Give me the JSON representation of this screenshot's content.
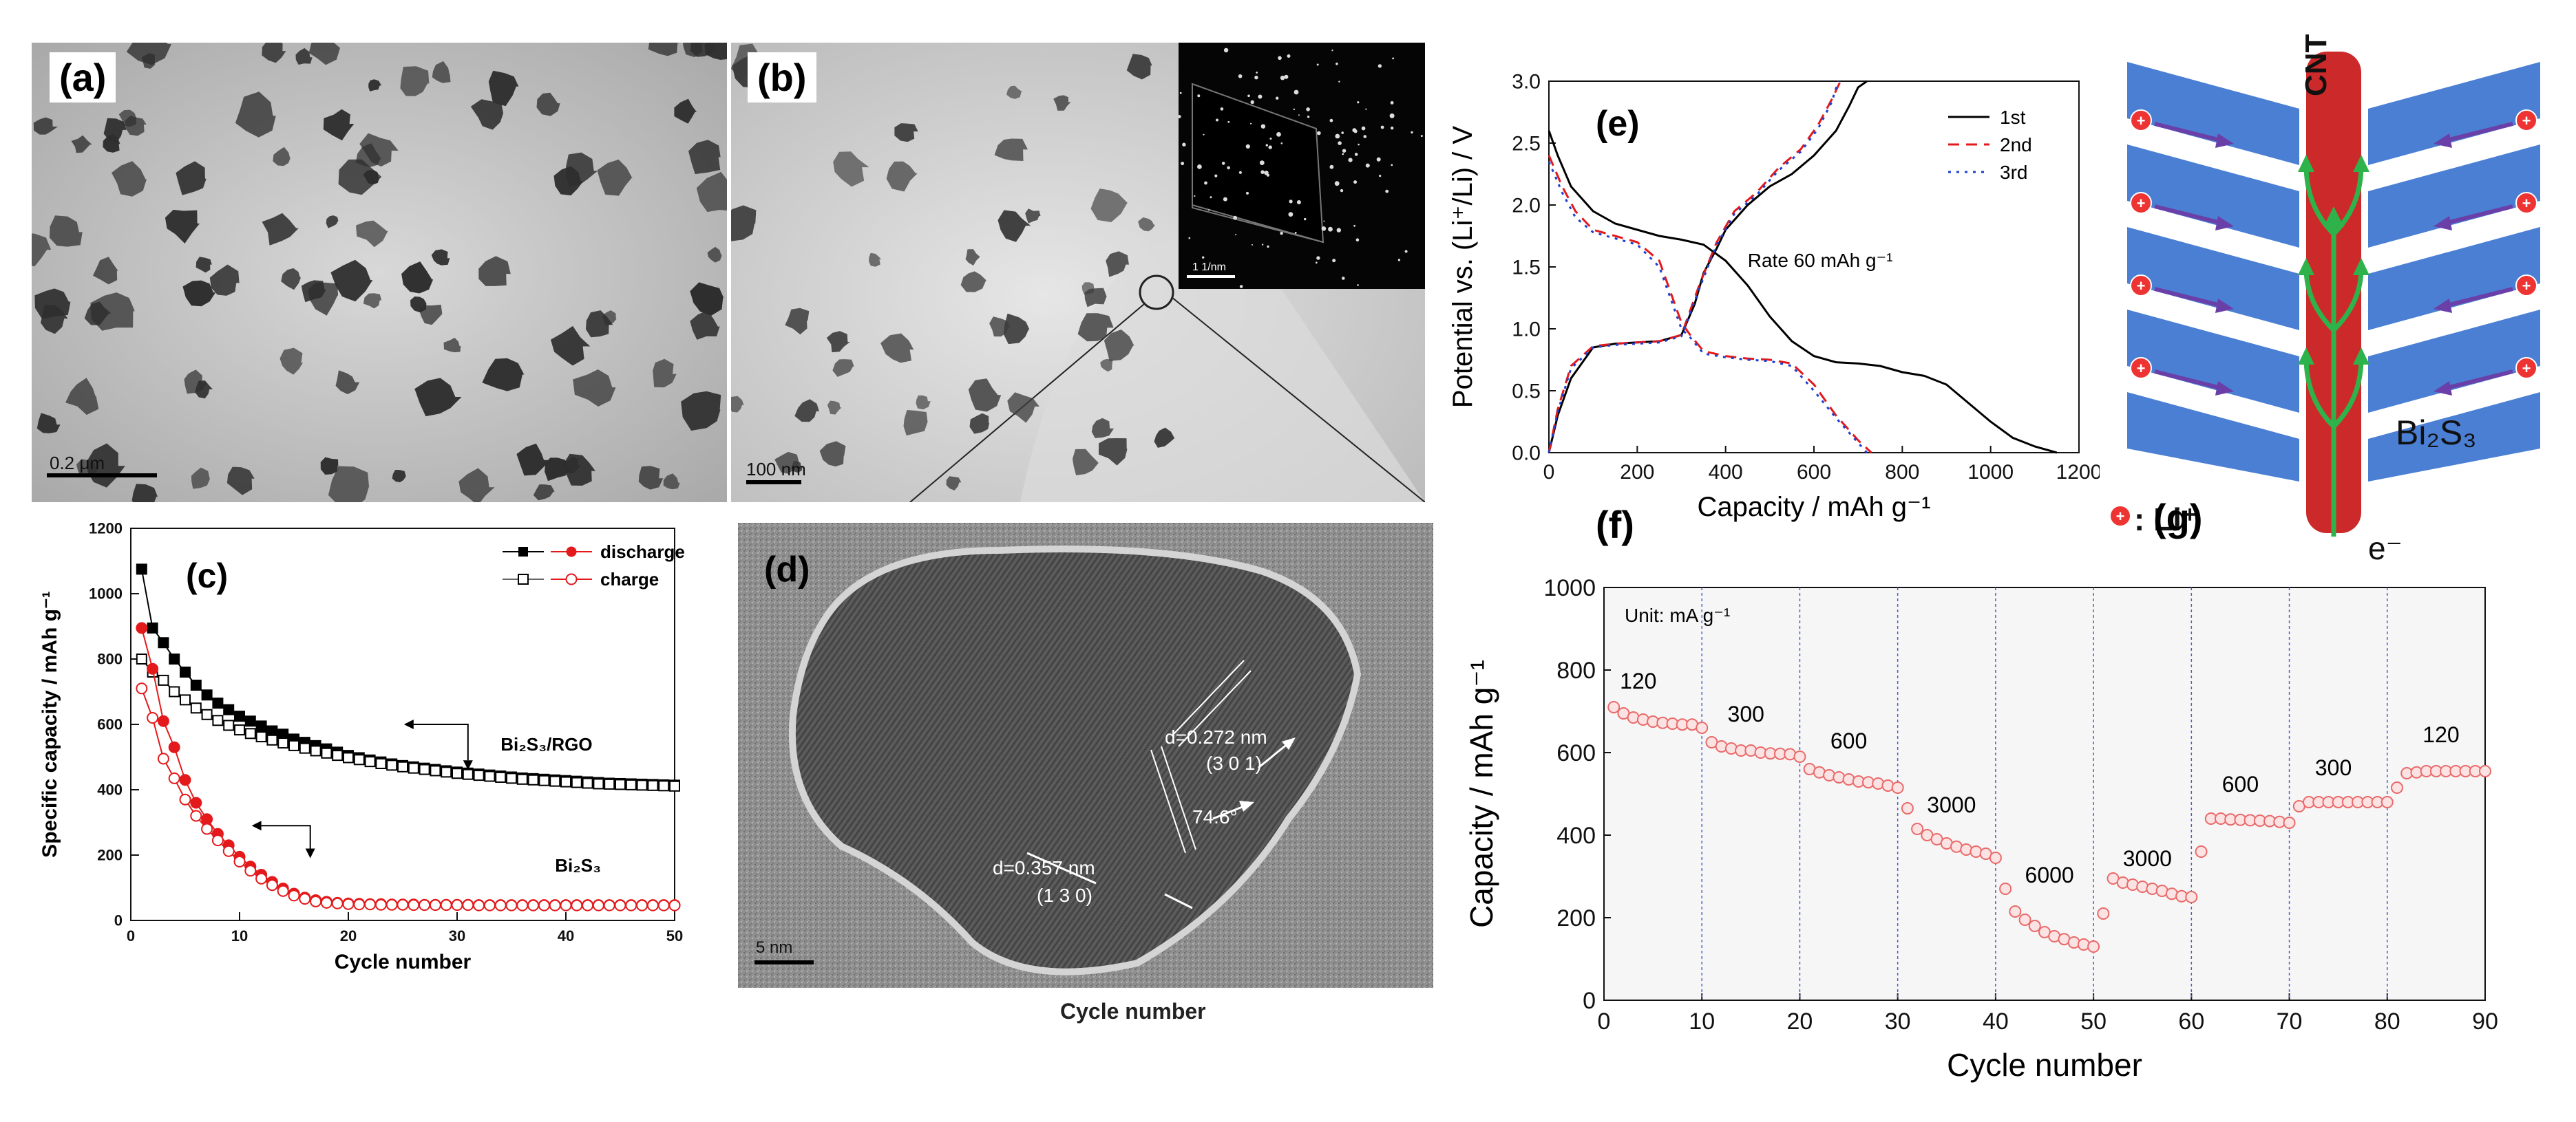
{
  "panels": {
    "a": {
      "letter": "(a)",
      "scale_bar": "0.2 μm"
    },
    "b": {
      "letter": "(b)",
      "scale_bar": "100 nm",
      "inset_scale_bar": "1 1/nm"
    },
    "c": {
      "letter": "(c)",
      "legend_discharge": "discharge",
      "legend_charge": "charge",
      "label_rgo": "Bi₂S₃/RGO",
      "label_bi2s3": "Bi₂S₃"
    },
    "d": {
      "letter": "(d)",
      "lattice_1_d": "d=0.272 nm",
      "lattice_1_hkl": "(3 0 1)",
      "lattice_2_d": "d=0.357 nm",
      "lattice_2_hkl": "(1 3 0)",
      "angle": "74.6°",
      "scale_bar": "5 nm",
      "caption": "Cycle number"
    },
    "e": {
      "letter": "(e)",
      "annotation": "Rate 60 mAh g⁻¹"
    },
    "f": {
      "letter": "(f)",
      "unit_note": "Unit: mA g⁻¹"
    },
    "g": {
      "letter": "(g)",
      "cnt_label": "CNT",
      "bi2s3_label": "Bi₂S₃",
      "li_legend": ": Li⁺",
      "electron_label": "e⁻"
    }
  },
  "colors": {
    "black_series": "#000000",
    "red_series": "#e3191b",
    "blue_series": "#1e3fd1",
    "f_series": "#e96a6a",
    "cnt_red": "#cc2a2a",
    "g_blue": "#4a7fd4",
    "g_arrow_purple": "#6a3fa8",
    "g_arrow_green": "#2db34a"
  },
  "chart_data": [
    {
      "id": "c",
      "type": "line",
      "title": "",
      "xlabel": "Cycle number",
      "ylabel": "Specific capacity / mAh g⁻¹",
      "xlim": [
        0,
        50
      ],
      "ylim": [
        0,
        1200
      ],
      "xticks": [
        0,
        10,
        20,
        30,
        40,
        50
      ],
      "yticks": [
        0,
        200,
        400,
        600,
        800,
        1000,
        1200
      ],
      "legend_position": "top-right",
      "x": [
        1,
        2,
        3,
        4,
        5,
        6,
        7,
        8,
        9,
        10,
        11,
        12,
        13,
        14,
        15,
        16,
        17,
        18,
        19,
        20,
        21,
        22,
        23,
        24,
        25,
        26,
        27,
        28,
        29,
        30,
        31,
        32,
        33,
        34,
        35,
        36,
        37,
        38,
        39,
        40,
        41,
        42,
        43,
        44,
        45,
        46,
        47,
        48,
        49,
        50
      ],
      "series": [
        {
          "group": "Bi2S3/RGO",
          "role": "discharge",
          "marker": "filled-square",
          "values": [
            1075,
            895,
            850,
            800,
            760,
            720,
            690,
            665,
            645,
            625,
            610,
            595,
            580,
            570,
            555,
            545,
            535,
            525,
            515,
            505,
            498,
            491,
            485,
            479,
            474,
            470,
            466,
            462,
            458,
            454,
            451,
            448,
            445,
            442,
            439,
            436,
            434,
            432,
            430,
            428,
            426,
            424,
            422,
            420,
            419,
            418,
            417,
            416,
            415,
            414
          ]
        },
        {
          "group": "Bi2S3/RGO",
          "role": "charge",
          "marker": "open-square",
          "values": [
            800,
            760,
            735,
            700,
            675,
            650,
            630,
            612,
            597,
            583,
            572,
            562,
            552,
            543,
            535,
            527,
            519,
            512,
            505,
            498,
            492,
            486,
            480,
            475,
            470,
            466,
            462,
            458,
            454,
            450,
            447,
            444,
            441,
            438,
            435,
            432,
            430,
            428,
            426,
            424,
            422,
            420,
            418,
            417,
            416,
            415,
            414,
            413,
            412,
            411
          ]
        },
        {
          "group": "Bi2S3",
          "role": "discharge",
          "marker": "filled-circle",
          "values": [
            895,
            770,
            610,
            530,
            430,
            360,
            310,
            265,
            230,
            195,
            165,
            140,
            118,
            98,
            82,
            70,
            62,
            57,
            54,
            52,
            51,
            50,
            50,
            49,
            49,
            49,
            48,
            48,
            48,
            48,
            48,
            47,
            47,
            47,
            47,
            47,
            47,
            47,
            47,
            47,
            47,
            47,
            47,
            47,
            47,
            47,
            47,
            47,
            47,
            47
          ]
        },
        {
          "group": "Bi2S3",
          "role": "charge",
          "marker": "open-circle",
          "values": [
            710,
            620,
            495,
            435,
            370,
            320,
            280,
            245,
            212,
            180,
            152,
            128,
            108,
            90,
            76,
            66,
            58,
            54,
            52,
            50,
            49,
            49,
            48,
            48,
            48,
            47,
            47,
            47,
            47,
            47,
            47,
            46,
            46,
            46,
            46,
            46,
            46,
            46,
            46,
            46,
            46,
            46,
            46,
            46,
            46,
            46,
            46,
            46,
            46,
            46
          ]
        }
      ]
    },
    {
      "id": "e",
      "type": "line",
      "title": "",
      "xlabel": "Capacity / mAh g⁻¹",
      "ylabel": "Potential vs. (Li⁺/Li) / V",
      "xlim": [
        0,
        1200
      ],
      "ylim": [
        0,
        3.0
      ],
      "xticks": [
        0,
        200,
        400,
        600,
        800,
        1000,
        1200
      ],
      "yticks": [
        0.0,
        0.5,
        1.0,
        1.5,
        2.0,
        2.5,
        3.0
      ],
      "legend_position": "top-right",
      "series": [
        {
          "name": "1st",
          "style": "solid",
          "color": "#000000",
          "discharge": {
            "x": [
              0,
              20,
              50,
              100,
              150,
              200,
              250,
              300,
              350,
              400,
              450,
              500,
              550,
              600,
              650,
              700,
              750,
              800,
              850,
              900,
              950,
              1000,
              1050,
              1100,
              1150
            ],
            "y": [
              2.6,
              2.4,
              2.15,
              1.95,
              1.85,
              1.8,
              1.75,
              1.72,
              1.68,
              1.55,
              1.35,
              1.1,
              0.9,
              0.78,
              0.73,
              0.72,
              0.7,
              0.65,
              0.62,
              0.55,
              0.4,
              0.25,
              0.12,
              0.05,
              0.0
            ]
          },
          "charge": {
            "x": [
              0,
              20,
              50,
              100,
              150,
              200,
              250,
              300,
              330,
              350,
              380,
              400,
              450,
              500,
              550,
              600,
              650,
              680,
              700,
              720
            ],
            "y": [
              0.0,
              0.3,
              0.6,
              0.85,
              0.88,
              0.89,
              0.9,
              0.95,
              1.2,
              1.45,
              1.65,
              1.8,
              2.0,
              2.15,
              2.25,
              2.4,
              2.6,
              2.8,
              2.95,
              3.0
            ]
          }
        },
        {
          "name": "2nd",
          "style": "dashed",
          "color": "#e3191b",
          "discharge": {
            "x": [
              0,
              30,
              60,
              100,
              150,
              200,
              250,
              300,
              320,
              350,
              400,
              450,
              500,
              550,
              600,
              650,
              700,
              730
            ],
            "y": [
              2.4,
              2.15,
              1.95,
              1.8,
              1.75,
              1.7,
              1.55,
              1.05,
              0.95,
              0.82,
              0.78,
              0.76,
              0.75,
              0.72,
              0.55,
              0.3,
              0.1,
              0.0
            ]
          },
          "charge": {
            "x": [
              0,
              20,
              50,
              100,
              150,
              200,
              250,
              300,
              340,
              380,
              420,
              470,
              520,
              570,
              610,
              640,
              660
            ],
            "y": [
              0.0,
              0.35,
              0.7,
              0.86,
              0.88,
              0.89,
              0.9,
              0.95,
              1.35,
              1.7,
              1.95,
              2.1,
              2.3,
              2.45,
              2.65,
              2.85,
              3.0
            ]
          }
        },
        {
          "name": "3rd",
          "style": "dotted",
          "color": "#1e3fd1",
          "discharge": {
            "x": [
              0,
              30,
              60,
              100,
              150,
              200,
              250,
              300,
              320,
              350,
              400,
              450,
              500,
              550,
              600,
              650,
              700,
              720
            ],
            "y": [
              2.35,
              2.1,
              1.9,
              1.78,
              1.73,
              1.68,
              1.5,
              1.0,
              0.93,
              0.8,
              0.77,
              0.75,
              0.74,
              0.7,
              0.5,
              0.28,
              0.08,
              0.0
            ]
          },
          "charge": {
            "x": [
              0,
              20,
              50,
              100,
              150,
              200,
              250,
              300,
              340,
              380,
              420,
              470,
              520,
              570,
              610,
              640,
              655
            ],
            "y": [
              0.0,
              0.33,
              0.68,
              0.85,
              0.87,
              0.88,
              0.89,
              0.94,
              1.32,
              1.68,
              1.93,
              2.08,
              2.28,
              2.43,
              2.62,
              2.83,
              3.0
            ]
          }
        }
      ]
    },
    {
      "id": "f",
      "type": "scatter",
      "title": "",
      "xlabel": "Cycle number",
      "ylabel": "Capacity / mAh g⁻¹",
      "xlim": [
        0,
        90
      ],
      "ylim": [
        0,
        1000
      ],
      "xticks": [
        0,
        10,
        20,
        30,
        40,
        50,
        60,
        70,
        80,
        90
      ],
      "yticks": [
        0,
        200,
        400,
        600,
        800,
        1000
      ],
      "vertical_dividers": [
        10,
        20,
        30,
        40,
        50,
        60,
        70,
        80
      ],
      "segment_labels": [
        {
          "text": "120",
          "x": 3.5,
          "y": 755
        },
        {
          "text": "300",
          "x": 14.5,
          "y": 675
        },
        {
          "text": "600",
          "x": 25,
          "y": 610
        },
        {
          "text": "3000",
          "x": 35.5,
          "y": 455
        },
        {
          "text": "6000",
          "x": 45.5,
          "y": 285
        },
        {
          "text": "3000",
          "x": 55.5,
          "y": 325
        },
        {
          "text": "600",
          "x": 65,
          "y": 505
        },
        {
          "text": "300",
          "x": 74.5,
          "y": 545
        },
        {
          "text": "120",
          "x": 85.5,
          "y": 625
        }
      ],
      "x": [
        1,
        2,
        3,
        4,
        5,
        6,
        7,
        8,
        9,
        10,
        11,
        12,
        13,
        14,
        15,
        16,
        17,
        18,
        19,
        20,
        21,
        22,
        23,
        24,
        25,
        26,
        27,
        28,
        29,
        30,
        31,
        32,
        33,
        34,
        35,
        36,
        37,
        38,
        39,
        40,
        41,
        42,
        43,
        44,
        45,
        46,
        47,
        48,
        49,
        50,
        51,
        52,
        53,
        54,
        55,
        56,
        57,
        58,
        59,
        60,
        61,
        62,
        63,
        64,
        65,
        66,
        67,
        68,
        69,
        70,
        71,
        72,
        73,
        74,
        75,
        76,
        77,
        78,
        79,
        80,
        81,
        82,
        83,
        84,
        85,
        86,
        87,
        88,
        89,
        90
      ],
      "values": [
        710,
        695,
        685,
        680,
        675,
        672,
        670,
        668,
        668,
        660,
        625,
        615,
        610,
        605,
        605,
        600,
        598,
        597,
        596,
        590,
        560,
        552,
        545,
        540,
        535,
        530,
        528,
        525,
        520,
        515,
        465,
        415,
        400,
        390,
        380,
        372,
        365,
        360,
        355,
        345,
        270,
        215,
        195,
        180,
        165,
        155,
        148,
        140,
        135,
        130,
        210,
        295,
        285,
        280,
        275,
        270,
        265,
        258,
        252,
        250,
        360,
        440,
        440,
        438,
        437,
        436,
        435,
        434,
        432,
        430,
        470,
        480,
        480,
        480,
        480,
        480,
        480,
        480,
        480,
        480,
        515,
        550,
        552,
        555,
        555,
        555,
        555,
        555,
        555,
        555
      ]
    }
  ]
}
